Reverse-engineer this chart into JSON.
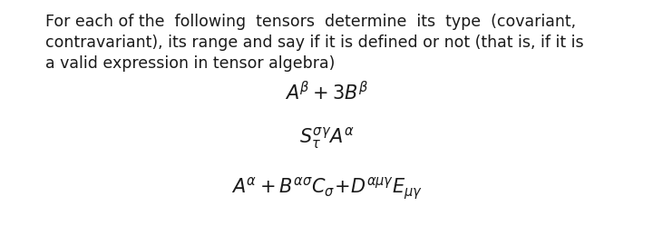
{
  "background_color": "#ffffff",
  "text_color": "#1a1a1a",
  "para_line1": "For each of the  following  tensors  determine  its  type  (covariant,",
  "para_line2": "contravariant), its range and say if it is defined or not (that is, if it is",
  "para_line3": "a valid expression in tensor algebra)",
  "eq1": "$A^{\\beta} + 3B^{\\beta}$",
  "eq2": "$S_{\\tau}^{\\sigma\\gamma}A^{\\alpha}$",
  "eq3": "$A^{\\alpha} + B^{\\alpha\\sigma}C_{\\sigma}\\!+\\!D^{\\alpha\\mu\\gamma}E_{\\mu\\gamma}$",
  "para_fontsize": 12.5,
  "eq_fontsize": 15,
  "fig_width": 7.2,
  "fig_height": 2.6,
  "dpi": 100
}
